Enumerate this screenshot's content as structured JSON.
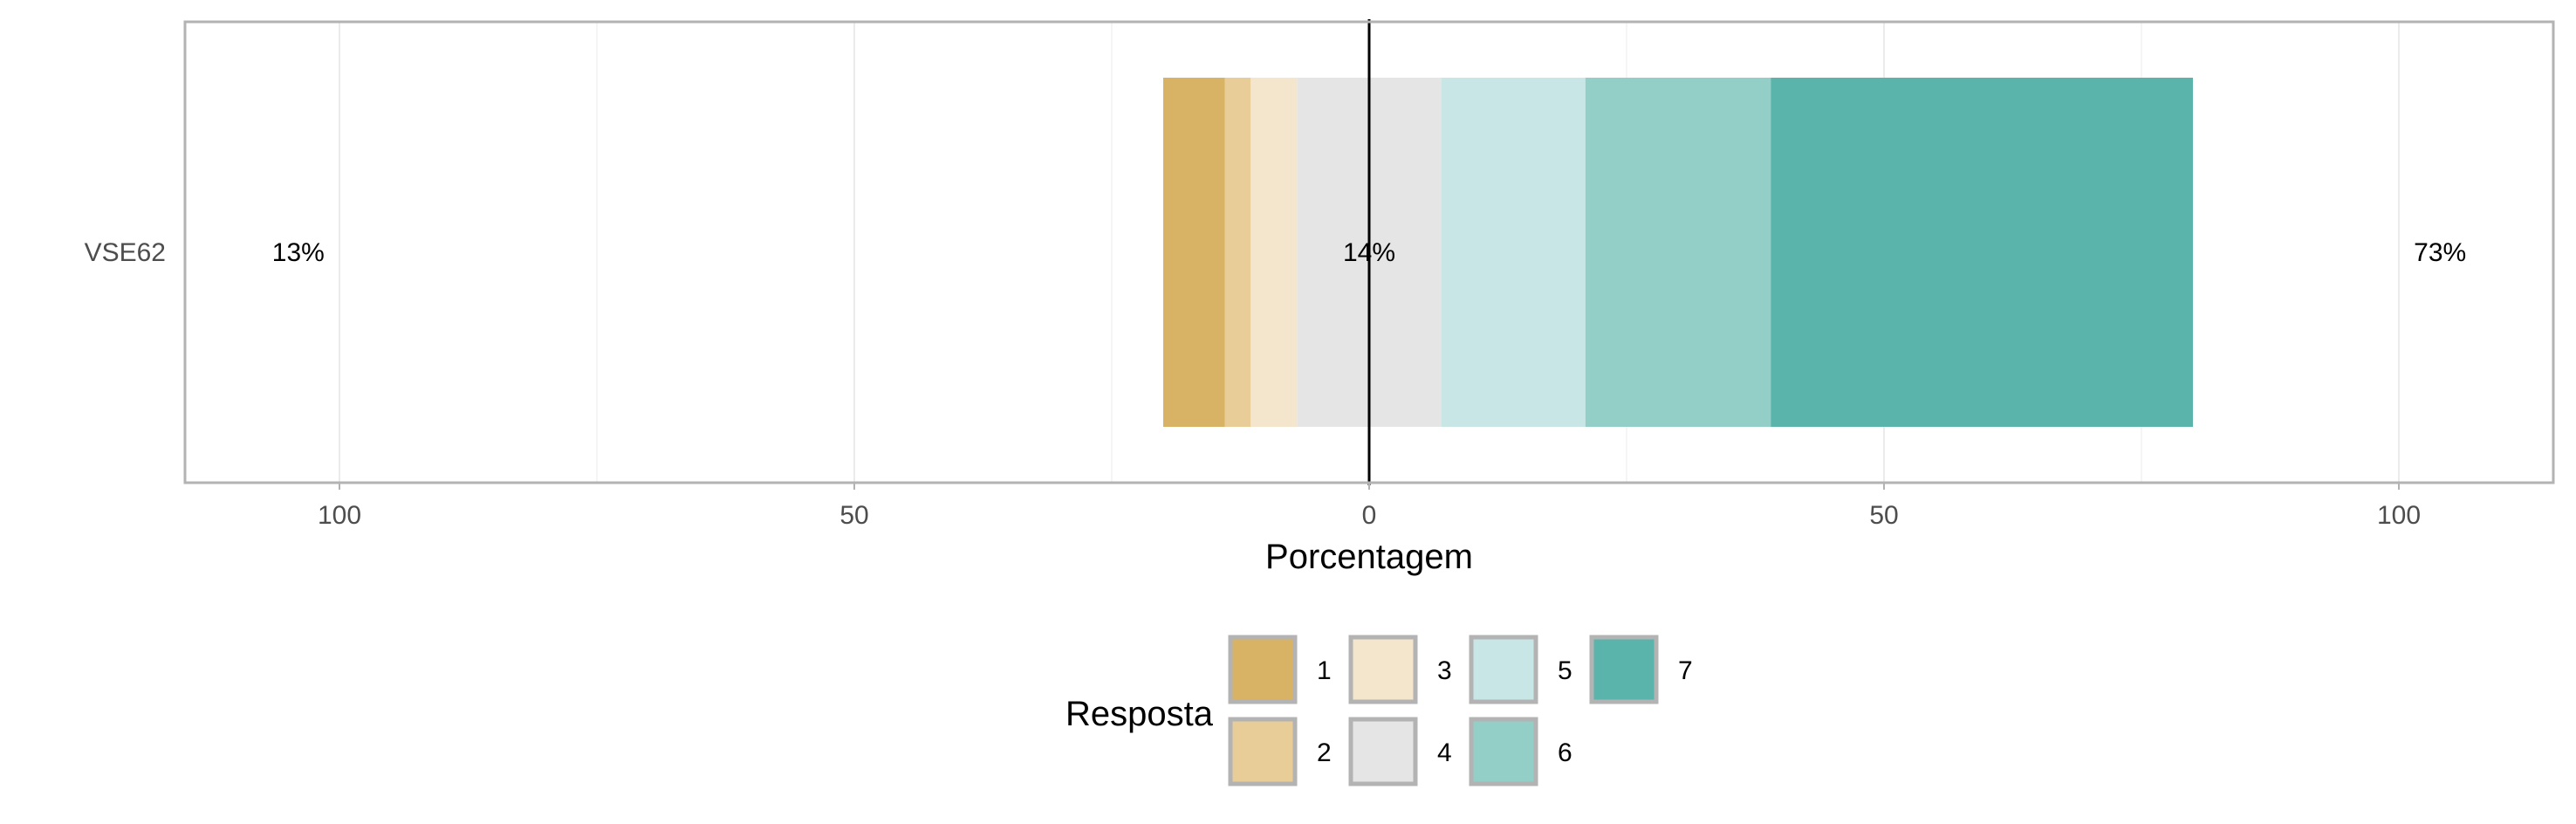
{
  "chart_data": {
    "type": "bar",
    "orientation": "horizontal",
    "style": "diverging-stacked-likert",
    "categories": [
      "VSE62"
    ],
    "series": [
      {
        "name": "1",
        "values": [
          6
        ],
        "color": "#D8B365"
      },
      {
        "name": "2",
        "values": [
          2.5
        ],
        "color": "#E8CD98"
      },
      {
        "name": "3",
        "values": [
          4.5
        ],
        "color": "#F3E6CC"
      },
      {
        "name": "4",
        "values": [
          14
        ],
        "color": "#E5E5E5"
      },
      {
        "name": "5",
        "values": [
          14
        ],
        "color": "#C8E6E5"
      },
      {
        "name": "6",
        "values": [
          18
        ],
        "color": "#93CEC7"
      },
      {
        "name": "7",
        "values": [
          41
        ],
        "color": "#5AB4AC"
      }
    ],
    "neutral_series": "4",
    "summary_labels": {
      "left": "13%",
      "center": "14%",
      "right": "73%"
    },
    "xlabel": "Porcentagem",
    "xlim": [
      -115,
      115
    ],
    "x_ticks": [
      -100,
      -50,
      0,
      50,
      100
    ],
    "x_tick_labels": [
      "100",
      "50",
      "0",
      "50",
      "100"
    ],
    "grid": true,
    "legend": {
      "title": "Resposta",
      "position": "bottom",
      "items": [
        "1",
        "2",
        "3",
        "4",
        "5",
        "6",
        "7"
      ]
    },
    "panel_border_color": "#B3B3B3",
    "zero_line_color": "#000000"
  }
}
